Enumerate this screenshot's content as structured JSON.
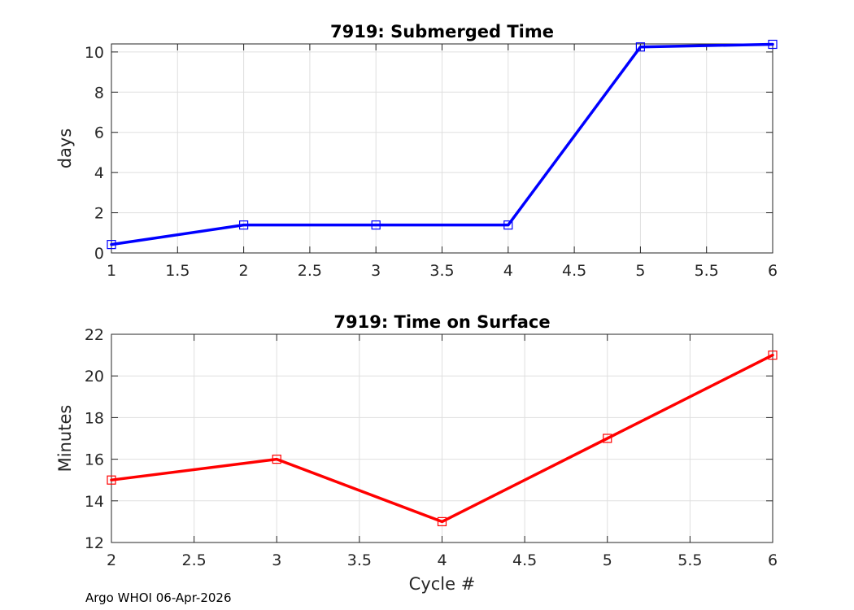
{
  "chart_data": [
    {
      "type": "line",
      "title": "7919: Submerged Time",
      "xlabel": "",
      "ylabel": "days",
      "xlim": [
        1,
        6
      ],
      "ylim": [
        0,
        10.4
      ],
      "xticks": [
        1,
        1.5,
        2,
        2.5,
        3,
        3.5,
        4,
        4.5,
        5,
        5.5,
        6
      ],
      "xtick_labels": [
        "1",
        "1.5",
        "2",
        "2.5",
        "3",
        "3.5",
        "4",
        "4.5",
        "5",
        "5.5",
        "6"
      ],
      "yticks": [
        0,
        2,
        4,
        6,
        8,
        10
      ],
      "ytick_labels": [
        "0",
        "2",
        "4",
        "6",
        "8",
        "10"
      ],
      "grid": true,
      "color": "#0000ff",
      "marker": "square",
      "x": [
        1,
        2,
        3,
        4,
        5,
        6
      ],
      "y": [
        0.42,
        1.39,
        1.39,
        1.39,
        10.25,
        10.38
      ]
    },
    {
      "type": "line",
      "title": "7919: Time on Surface",
      "xlabel": "Cycle #",
      "ylabel": "Minutes",
      "xlim": [
        2,
        6
      ],
      "ylim": [
        12,
        22
      ],
      "xticks": [
        2,
        2.5,
        3,
        3.5,
        4,
        4.5,
        5,
        5.5,
        6
      ],
      "xtick_labels": [
        "2",
        "2.5",
        "3",
        "3.5",
        "4",
        "4.5",
        "5",
        "5.5",
        "6"
      ],
      "yticks": [
        12,
        14,
        16,
        18,
        20,
        22
      ],
      "ytick_labels": [
        "12",
        "14",
        "16",
        "18",
        "20",
        "22"
      ],
      "grid": true,
      "color": "#ff0000",
      "marker": "square",
      "x": [
        2,
        3,
        4,
        5,
        6
      ],
      "y": [
        15,
        16,
        13,
        17,
        21
      ]
    }
  ],
  "footer": "Argo WHOI 06-Apr-2026"
}
